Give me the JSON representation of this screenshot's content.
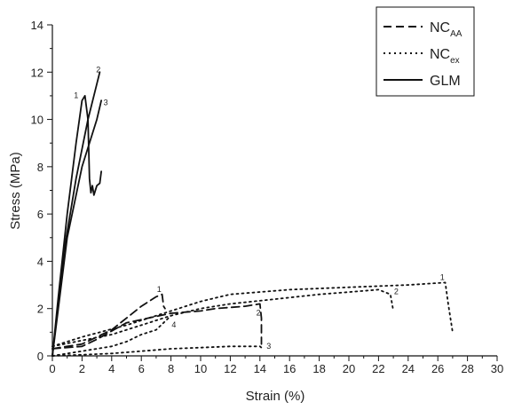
{
  "chart_data": {
    "type": "line",
    "title": "",
    "xlabel": "Strain (%)",
    "ylabel": "Stress (MPa)",
    "xlim": [
      0,
      30
    ],
    "ylim": [
      0,
      14
    ],
    "x_ticks": [
      "0",
      "2",
      "4",
      "6",
      "8",
      "10",
      "12",
      "14",
      "16",
      "18",
      "20",
      "22",
      "24",
      "26",
      "28",
      "30"
    ],
    "y_ticks": [
      "0",
      "2",
      "4",
      "6",
      "8",
      "10",
      "12",
      "14"
    ],
    "grid": false,
    "legend_position": "top-right",
    "legend": [
      {
        "main": "NC",
        "sub": "AA",
        "style": "dashed"
      },
      {
        "main": "NC",
        "sub": "ex",
        "style": "dotted"
      },
      {
        "main": "GLM",
        "sub": "",
        "style": "solid"
      }
    ],
    "series": [
      {
        "group": "GLM",
        "label": "1",
        "style": "solid",
        "x": [
          0,
          0.4,
          1.0,
          1.6,
          2.0,
          2.2,
          2.4,
          2.5,
          2.6,
          2.7,
          2.8,
          3.0,
          3.2,
          3.3
        ],
        "y": [
          0,
          2.5,
          6.0,
          9.0,
          10.8,
          11.0,
          10.0,
          7.5,
          6.9,
          7.2,
          6.8,
          7.2,
          7.3,
          7.8
        ]
      },
      {
        "group": "GLM",
        "label": "2",
        "style": "solid",
        "x": [
          0,
          0.8,
          1.6,
          2.4,
          3.2
        ],
        "y": [
          0,
          4.5,
          7.5,
          10.0,
          12.0
        ]
      },
      {
        "group": "GLM",
        "label": "3",
        "style": "solid",
        "x": [
          0,
          1.0,
          2.0,
          3.0,
          3.3
        ],
        "y": [
          0,
          5.0,
          8.0,
          10.0,
          10.8
        ]
      },
      {
        "group": "NC_AA",
        "label": "1",
        "style": "dashed",
        "x": [
          0,
          1.0,
          2.0,
          3.0,
          4.0,
          5.0,
          6.0,
          7.0,
          7.4,
          7.5,
          7.6
        ],
        "y": [
          0.3,
          0.4,
          0.5,
          0.8,
          1.1,
          1.6,
          2.1,
          2.5,
          2.6,
          2.1,
          2.0
        ]
      },
      {
        "group": "NC_AA",
        "label": "2",
        "style": "dashed",
        "x": [
          0,
          2.0,
          3.0,
          5.0,
          8.0,
          10.0,
          11.0,
          13.0,
          14.0,
          14.1,
          14.1
        ],
        "y": [
          0.3,
          0.4,
          0.7,
          1.4,
          1.8,
          1.9,
          2.0,
          2.1,
          2.2,
          1.6,
          0.5
        ]
      },
      {
        "group": "NC_EX",
        "label": "1",
        "style": "dotted",
        "x": [
          0,
          2.0,
          5.0,
          8.0,
          10.0,
          12.0,
          16.0,
          20.0,
          24.0,
          26.5,
          26.7,
          27.0
        ],
        "y": [
          0.4,
          0.8,
          1.3,
          1.9,
          2.3,
          2.6,
          2.8,
          2.9,
          3.0,
          3.1,
          2.2,
          1.0
        ]
      },
      {
        "group": "NC_EX",
        "label": "2",
        "style": "dotted",
        "x": [
          0,
          4.0,
          6.0,
          8.0,
          10.0,
          12.0,
          15.0,
          18.0,
          20.0,
          22.0,
          22.8,
          23.0
        ],
        "y": [
          0.4,
          0.9,
          1.3,
          1.7,
          2.0,
          2.2,
          2.4,
          2.6,
          2.7,
          2.8,
          2.6,
          1.9
        ]
      },
      {
        "group": "NC_EX",
        "label": "3",
        "style": "dotted",
        "x": [
          0,
          2.0,
          4.0,
          6.0,
          8.0,
          10.0,
          12.0,
          13.5,
          14.0,
          14.2
        ],
        "y": [
          0.0,
          0.05,
          0.1,
          0.2,
          0.3,
          0.35,
          0.4,
          0.4,
          0.4,
          0.3
        ]
      },
      {
        "group": "NC_EX",
        "label": "4",
        "style": "dotted",
        "x": [
          0,
          2.0,
          4.0,
          5.0,
          6.0,
          7.0,
          7.5,
          8.0
        ],
        "y": [
          0.0,
          0.2,
          0.4,
          0.6,
          0.9,
          1.1,
          1.4,
          1.7
        ]
      }
    ],
    "curve_labels": [
      {
        "text": "1",
        "x": 1.6,
        "y": 10.9
      },
      {
        "text": "2",
        "x": 3.1,
        "y": 12.0
      },
      {
        "text": "3",
        "x": 3.6,
        "y": 10.6
      },
      {
        "text": "1",
        "x": 7.2,
        "y": 2.7
      },
      {
        "text": "4",
        "x": 8.2,
        "y": 1.2
      },
      {
        "text": "2",
        "x": 13.9,
        "y": 1.7
      },
      {
        "text": "3",
        "x": 14.6,
        "y": 0.3
      },
      {
        "text": "1",
        "x": 26.3,
        "y": 3.2
      },
      {
        "text": "2",
        "x": 23.2,
        "y": 2.6
      }
    ]
  }
}
